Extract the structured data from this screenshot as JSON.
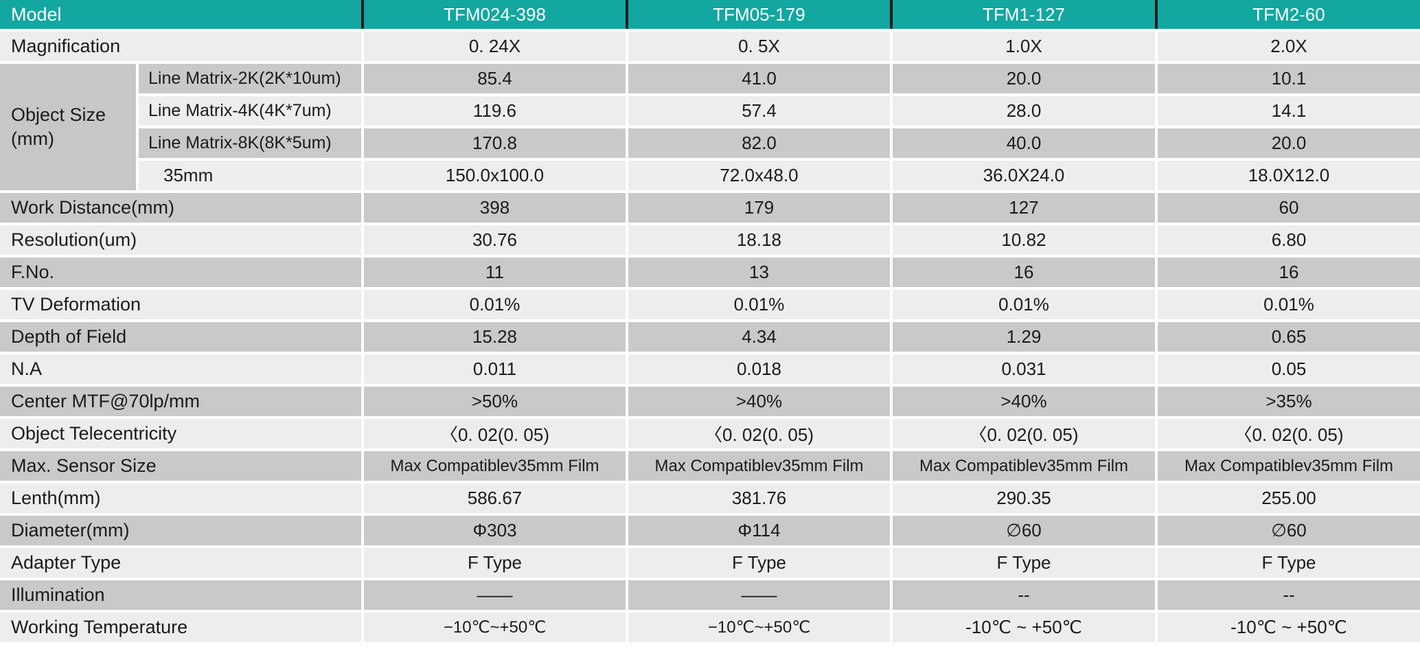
{
  "colors": {
    "header_bg": "#12a7a0",
    "header_text": "#ffffff",
    "header_separator": "#1c1c1c",
    "row_dark": "#c9c9c9",
    "row_light": "#ededed",
    "group_cell_bg": "#c7c7c7"
  },
  "header": {
    "label": "Model",
    "models": [
      "TFM024-398",
      "TFM05-179",
      "TFM1-127",
      "TFM2-60"
    ]
  },
  "object_size": {
    "label": "Object Size (mm)",
    "sub_rows": [
      {
        "label": "Line Matrix-2K(2K*10um)",
        "values": [
          "85.4",
          "41.0",
          "20.0",
          "10.1"
        ]
      },
      {
        "label": "Line Matrix-4K(4K*7um)",
        "values": [
          "119.6",
          "57.4",
          "28.0",
          "14.1"
        ]
      },
      {
        "label": "Line Matrix-8K(8K*5um)",
        "values": [
          "170.8",
          "82.0",
          "40.0",
          "20.0"
        ]
      },
      {
        "label": "35mm",
        "values": [
          "150.0x100.0",
          "72.0x48.0",
          "36.0X24.0",
          "18.0X12.0"
        ]
      }
    ]
  },
  "rows": [
    {
      "label": "Magnification",
      "values": [
        "0. 24X",
        "0. 5X",
        "1.0X",
        "2.0X"
      ]
    },
    {
      "label": "Work Distance(mm)",
      "values": [
        "398",
        "179",
        "127",
        "60"
      ]
    },
    {
      "label": "Resolution(um)",
      "values": [
        "30.76",
        "18.18",
        "10.82",
        "6.80"
      ]
    },
    {
      "label": "F.No.",
      "values": [
        "11",
        "13",
        "16",
        "16"
      ]
    },
    {
      "label": "TV Deformation",
      "values": [
        "0.01%",
        "0.01%",
        "0.01%",
        "0.01%"
      ]
    },
    {
      "label": "Depth of Field",
      "values": [
        "15.28",
        "4.34",
        "1.29",
        "0.65"
      ]
    },
    {
      "label": "N.A",
      "values": [
        "0.011",
        "0.018",
        "0.031",
        "0.05"
      ]
    },
    {
      "label": "Center MTF@70lp/mm",
      "values": [
        ">50%",
        ">40%",
        ">40%",
        ">35%"
      ]
    },
    {
      "label": "Object Telecentricity",
      "values": [
        "〈0. 02(0. 05)",
        "〈0. 02(0. 05)",
        "〈0. 02(0. 05)",
        "〈0. 02(0. 05)"
      ]
    },
    {
      "label": "Max. Sensor Size",
      "values": [
        "Max Compatiblev35mm Film",
        "Max Compatiblev35mm Film",
        "Max Compatiblev35mm Film",
        "Max Compatiblev35mm Film"
      ]
    },
    {
      "label": "Lenth(mm)",
      "values": [
        "586.67",
        "381.76",
        "290.35",
        "255.00"
      ]
    },
    {
      "label": "Diameter(mm)",
      "values": [
        "Φ303",
        "Φ114",
        "∅60",
        "∅60"
      ]
    },
    {
      "label": "Adapter Type",
      "values": [
        "F Type",
        "F Type",
        "F Type",
        "F Type"
      ]
    },
    {
      "label": "Illumination",
      "values": [
        "——",
        "——",
        "--",
        "--"
      ]
    },
    {
      "label": "Working Temperature",
      "values": [
        "−10℃~+50℃",
        "−10℃~+50℃",
        "-10℃ ~ +50℃",
        "-10℃ ~ +50℃"
      ]
    }
  ]
}
